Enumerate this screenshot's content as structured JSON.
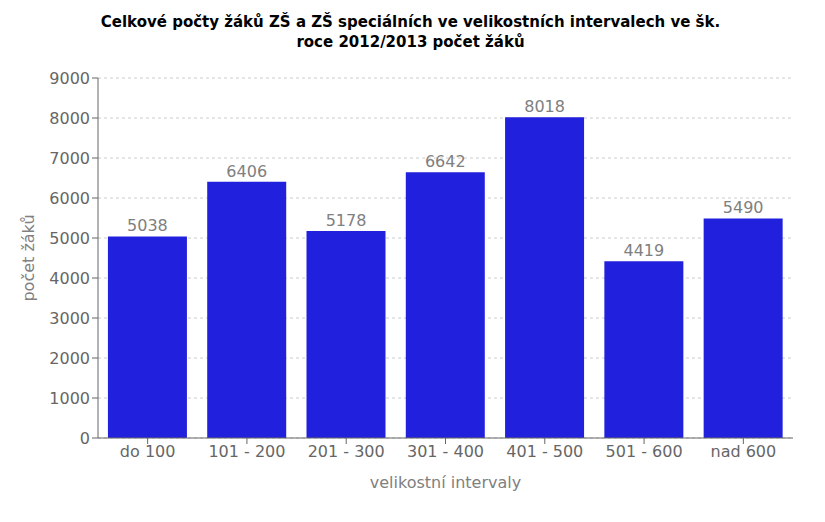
{
  "chart_data": {
    "type": "bar",
    "title": "Celkové počty žáků ZŠ a ZŠ speciálních ve velikostních intervalech ve šk.",
    "subtitle": "roce 2012/2013 počet žáků",
    "categories": [
      "do 100",
      "101 - 200",
      "201 - 300",
      "301 - 400",
      "401 - 500",
      "501 - 600",
      "nad 600"
    ],
    "values": [
      5038,
      6406,
      5178,
      6642,
      8018,
      4419,
      5490
    ],
    "color": "#2020dd",
    "xlabel": "velikostní intervaly",
    "ylabel": "počet žáků",
    "ylim": [
      0,
      9000
    ],
    "yticks": [
      0,
      1000,
      2000,
      3000,
      4000,
      5000,
      6000,
      7000,
      8000,
      9000
    ],
    "grid": true,
    "data_labels": true
  }
}
